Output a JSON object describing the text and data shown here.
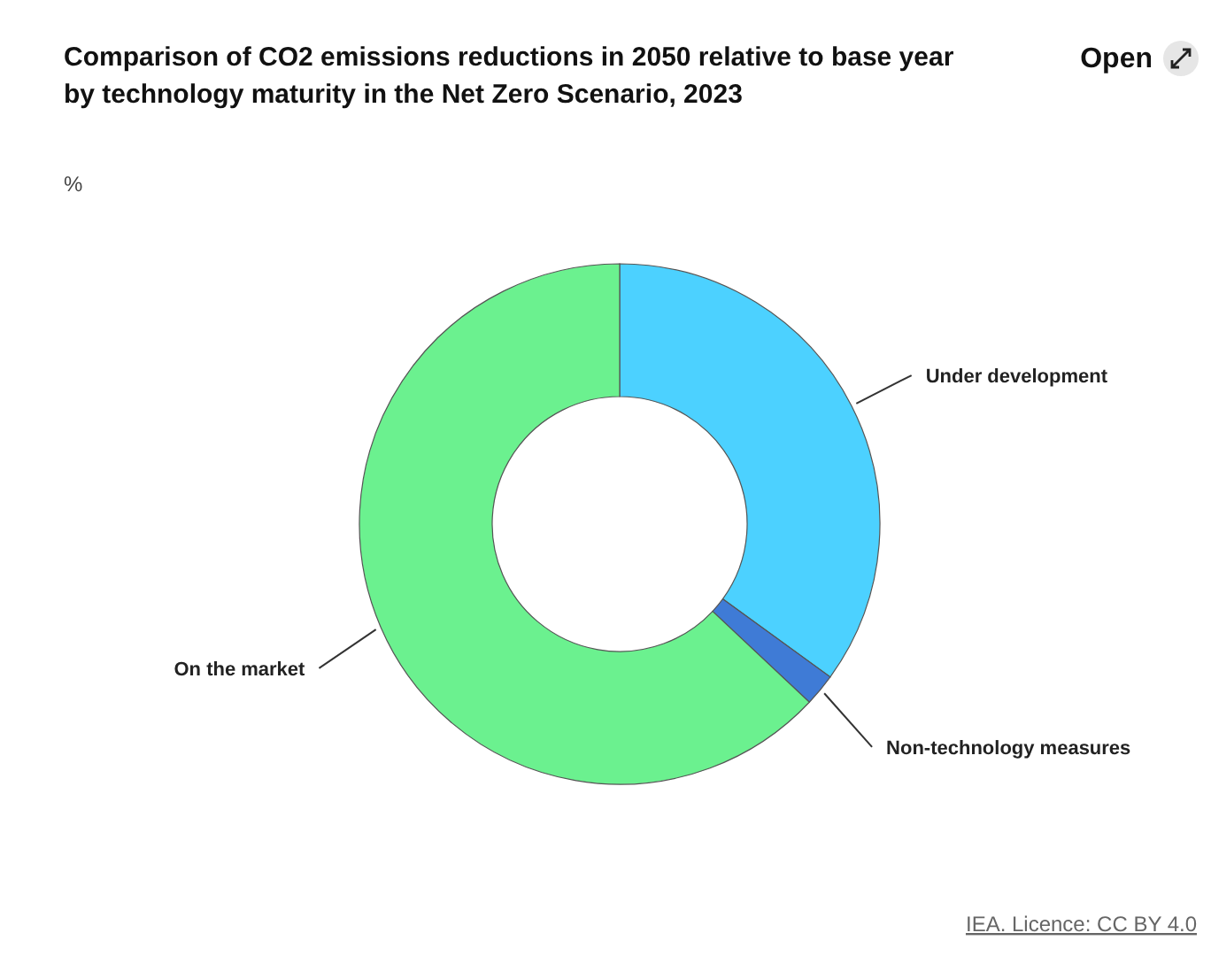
{
  "chart_data": {
    "type": "donut",
    "title": "Comparison of CO2 emissions reductions in 2050 relative to base year by technology maturity in the Net Zero Scenario, 2023",
    "ylabel": "%",
    "categories": [
      "Under development",
      "Non-technology measures",
      "On the market"
    ],
    "values": [
      35,
      2,
      63
    ],
    "colors": [
      "#4cd1ff",
      "#3f7bd6",
      "#6bf18f"
    ],
    "annotations": [
      "Open",
      "IEA. Licence: CC BY 4.0"
    ]
  }
}
